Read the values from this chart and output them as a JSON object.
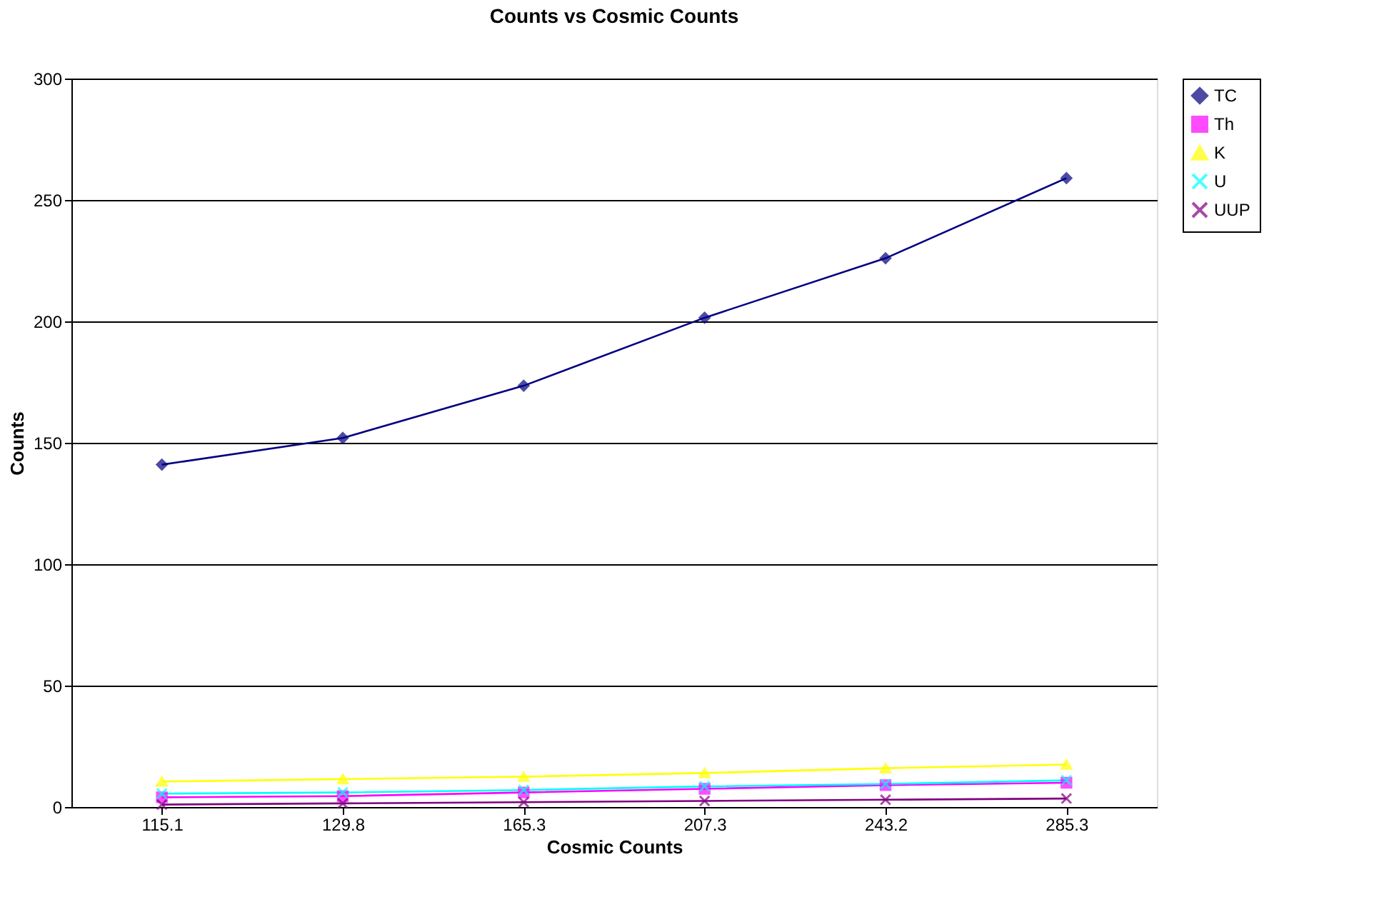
{
  "chart_data": {
    "type": "line",
    "title": "Counts vs Cosmic Counts",
    "xlabel": "Cosmic Counts",
    "ylabel": "Counts",
    "categories": [
      "115.1",
      "129.8",
      "165.3",
      "207.3",
      "243.2",
      "285.3"
    ],
    "series": [
      {
        "name": "TC",
        "color": "#000080",
        "marker": "diamond",
        "values": [
          141,
          152,
          173.5,
          201.5,
          226,
          259
        ]
      },
      {
        "name": "Th",
        "color": "#ff00ff",
        "marker": "square",
        "values": [
          4,
          4.5,
          6,
          7.5,
          9,
          10
        ]
      },
      {
        "name": "K",
        "color": "#ffff00",
        "marker": "triangle",
        "values": [
          10.5,
          11.5,
          12.5,
          14,
          16,
          17.5
        ]
      },
      {
        "name": "U",
        "color": "#00ffff",
        "marker": "cross",
        "values": [
          5.5,
          6,
          7,
          8.5,
          9.5,
          11
        ]
      },
      {
        "name": "UUP",
        "color": "#800080",
        "marker": "cross",
        "values": [
          1,
          1.5,
          2,
          2.5,
          3,
          3.5
        ]
      }
    ],
    "ylim": [
      0,
      300
    ],
    "yticks": [
      0,
      50,
      100,
      150,
      200,
      250,
      300
    ],
    "grid": "y",
    "legend": "right"
  }
}
